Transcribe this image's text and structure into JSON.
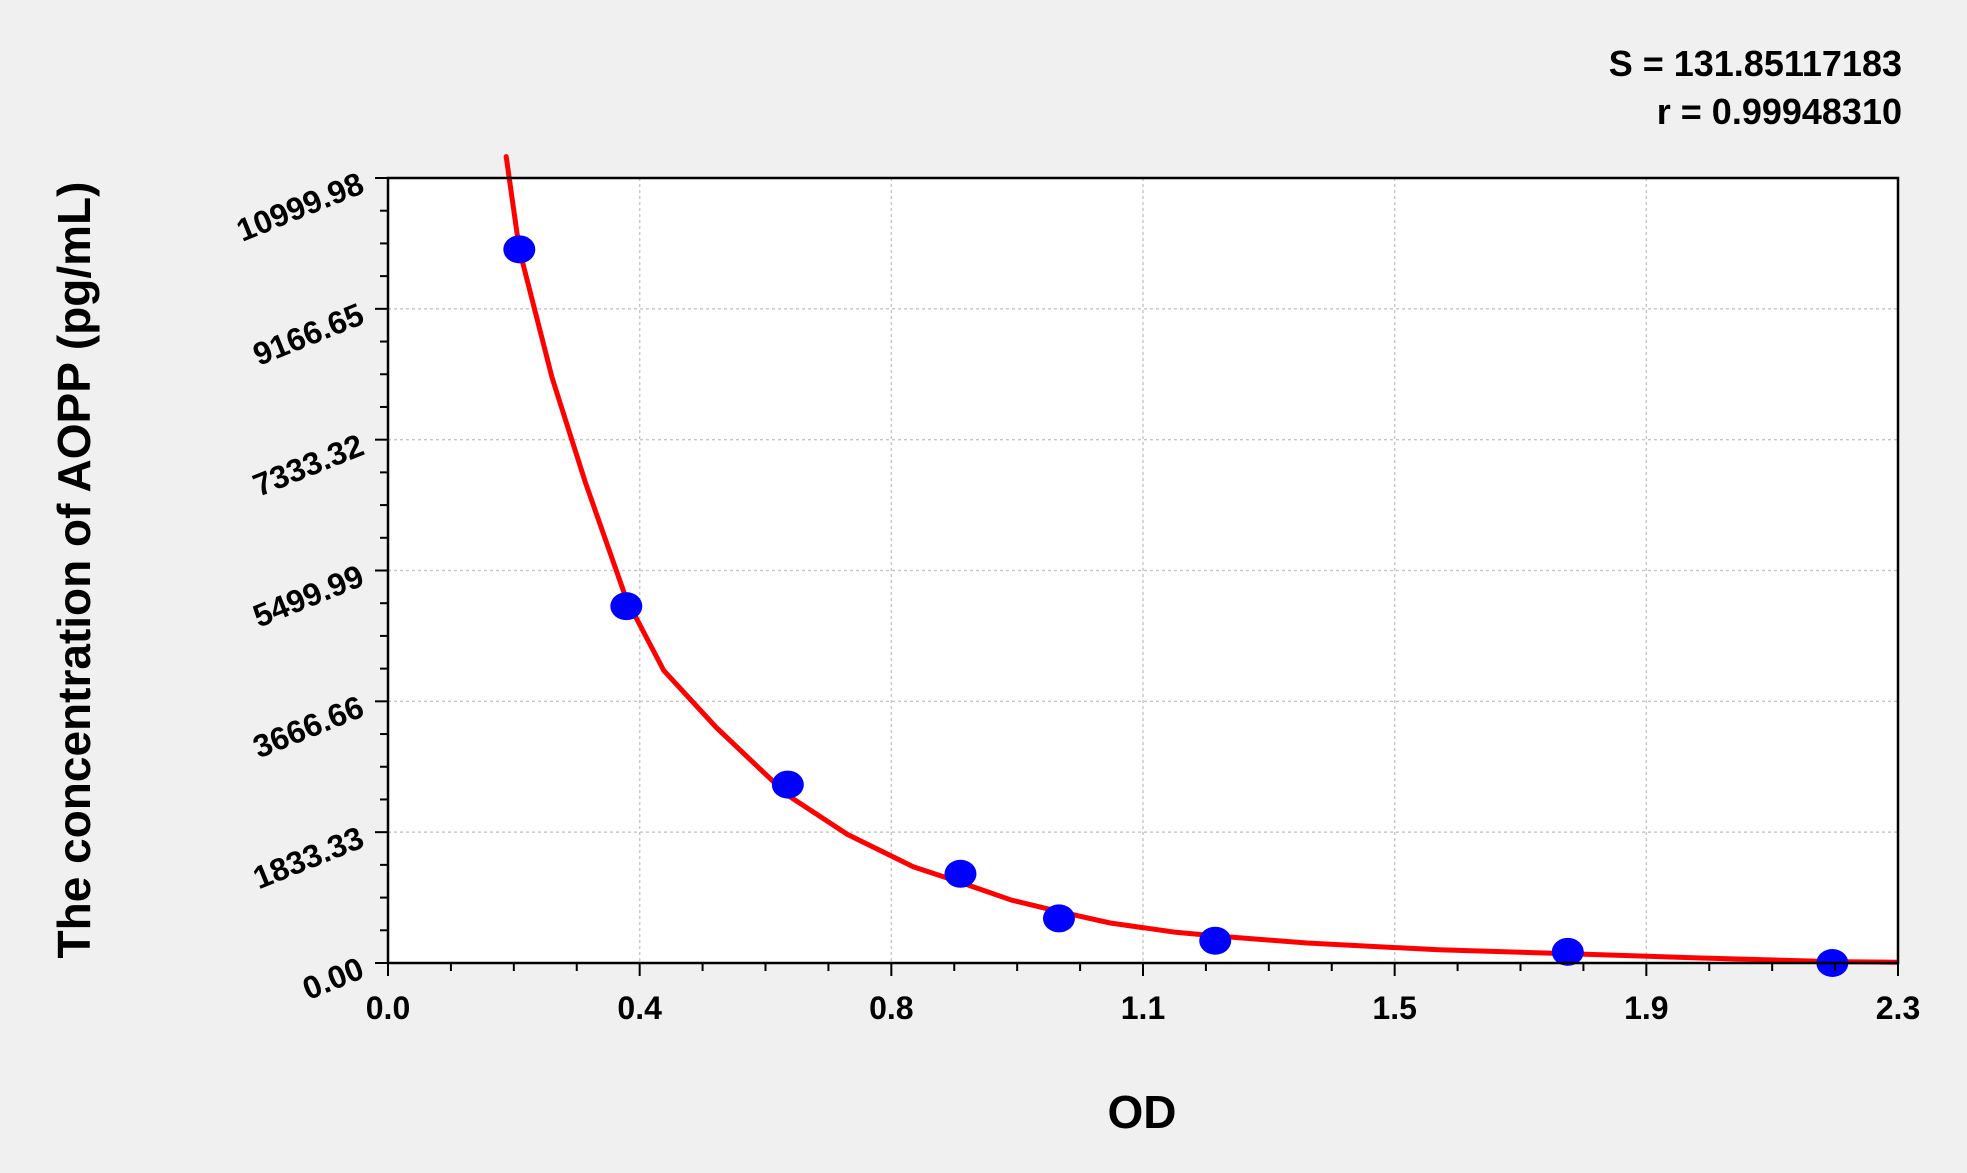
{
  "chart_data": {
    "type": "scatter",
    "title": "",
    "xlabel": "OD",
    "ylabel": "The concentration of AOPP (pg/mL)",
    "xlim": [
      0.0,
      2.3
    ],
    "ylim": [
      0.0,
      10999.98
    ],
    "x_ticks": [
      "0.0",
      "0.4",
      "0.8",
      "1.1",
      "1.5",
      "1.9",
      "2.3"
    ],
    "y_ticks": [
      "0.00",
      "1833.33",
      "3666.66",
      "5499.99",
      "7333.32",
      "9166.65",
      "10999.98"
    ],
    "grid": true,
    "annotations": [
      "S = 131.85117183",
      "r = 0.99948310"
    ],
    "series": [
      {
        "type": "scatter",
        "color": "#0000ff",
        "points": [
          {
            "x": 0.2,
            "y": 10000
          },
          {
            "x": 0.363,
            "y": 5000
          },
          {
            "x": 0.609,
            "y": 2500
          },
          {
            "x": 0.872,
            "y": 1250
          },
          {
            "x": 1.022,
            "y": 625
          },
          {
            "x": 1.26,
            "y": 312.5
          },
          {
            "x": 1.797,
            "y": 156.25
          },
          {
            "x": 2.2,
            "y": 0
          }
        ]
      },
      {
        "type": "line",
        "color": "#ff0000",
        "points": [
          {
            "x": 0.18,
            "y": 11300
          },
          {
            "x": 0.2,
            "y": 10000
          },
          {
            "x": 0.25,
            "y": 8200
          },
          {
            "x": 0.3,
            "y": 6750
          },
          {
            "x": 0.363,
            "y": 5100
          },
          {
            "x": 0.42,
            "y": 4100
          },
          {
            "x": 0.5,
            "y": 3300
          },
          {
            "x": 0.609,
            "y": 2350
          },
          {
            "x": 0.7,
            "y": 1800
          },
          {
            "x": 0.8,
            "y": 1350
          },
          {
            "x": 0.872,
            "y": 1130
          },
          {
            "x": 0.95,
            "y": 880
          },
          {
            "x": 1.022,
            "y": 720
          },
          {
            "x": 1.1,
            "y": 560
          },
          {
            "x": 1.2,
            "y": 430
          },
          {
            "x": 1.26,
            "y": 380
          },
          {
            "x": 1.4,
            "y": 280
          },
          {
            "x": 1.6,
            "y": 185
          },
          {
            "x": 1.8,
            "y": 130
          },
          {
            "x": 2.0,
            "y": 70
          },
          {
            "x": 2.2,
            "y": 20
          },
          {
            "x": 2.4,
            "y": 0
          }
        ]
      }
    ]
  }
}
